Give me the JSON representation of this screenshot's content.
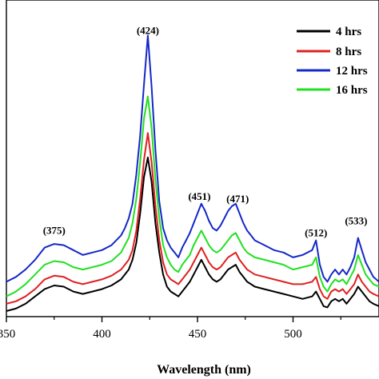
{
  "chart_data": {
    "type": "line",
    "title": "",
    "xlabel": "Wavelength (nm)",
    "ylabel": "",
    "xlim": [
      350,
      545
    ],
    "ylim": [
      0,
      100
    ],
    "x_ticks": [
      350,
      400,
      450,
      500
    ],
    "y_ticks_shown": false,
    "grid": false,
    "legend_position": "top-right",
    "x_tick_labels": [
      "350",
      "400",
      "450",
      "500"
    ],
    "peak_labels": [
      {
        "text": "(375)",
        "x": 375,
        "y": 29
      },
      {
        "text": "(424)",
        "x": 424,
        "y": 111
      },
      {
        "text": "(451)",
        "x": 451,
        "y": 43
      },
      {
        "text": "(471)",
        "x": 471,
        "y": 42
      },
      {
        "text": "(512)",
        "x": 512,
        "y": 28
      },
      {
        "text": "(533)",
        "x": 533,
        "y": 33
      }
    ],
    "x": [
      350,
      355,
      360,
      365,
      370,
      375,
      380,
      385,
      390,
      395,
      400,
      405,
      410,
      412,
      414,
      416,
      418,
      420,
      422,
      424,
      426,
      428,
      430,
      432,
      434,
      436,
      438,
      440,
      442,
      444,
      446,
      448,
      450,
      452,
      454,
      456,
      458,
      460,
      462,
      464,
      466,
      468,
      470,
      472,
      474,
      476,
      478,
      480,
      485,
      490,
      495,
      500,
      505,
      510,
      512,
      514,
      516,
      518,
      520,
      522,
      524,
      526,
      528,
      530,
      532,
      534,
      536,
      538,
      540,
      542,
      545
    ],
    "series": [
      {
        "name": "4 hrs",
        "color": "#000000",
        "values": [
          0,
          1,
          3,
          6,
          9,
          10.5,
          10,
          8,
          7,
          8,
          9,
          10.5,
          13,
          15,
          17,
          21,
          28,
          40,
          55,
          63,
          53,
          36,
          24,
          15,
          10,
          8,
          7,
          6,
          8,
          10,
          12,
          15,
          18,
          21,
          18,
          15,
          13,
          12,
          13,
          15,
          17,
          18,
          19,
          16,
          14,
          12,
          11,
          10,
          9,
          8,
          7,
          6,
          5,
          6,
          8,
          5,
          2,
          1.5,
          4,
          5,
          4,
          5,
          3,
          5,
          7,
          10,
          8,
          6,
          4,
          3,
          2
        ]
      },
      {
        "name": "8 hrs",
        "color": "#e02020",
        "values": [
          3,
          4,
          6,
          9,
          13,
          14.5,
          14,
          12,
          11,
          12,
          13,
          14.5,
          17,
          19,
          21,
          25,
          33,
          46,
          62,
          73,
          61,
          43,
          29,
          20,
          15,
          13,
          12,
          11,
          13,
          15,
          17,
          20,
          23,
          26,
          23,
          20,
          18,
          17,
          18,
          20,
          22,
          23,
          24,
          21,
          19,
          17,
          16,
          15,
          14,
          13,
          12,
          11,
          11,
          12,
          14,
          9,
          6,
          5,
          8,
          9,
          8,
          9,
          7,
          9,
          11,
          15,
          12,
          10,
          8,
          7,
          6
        ]
      },
      {
        "name": "12 hrs",
        "color": "#1528c8",
        "values": [
          12,
          14,
          17,
          21,
          26,
          27.5,
          27,
          25,
          23,
          24,
          25,
          27,
          31,
          34,
          38,
          44,
          56,
          72,
          93,
          113,
          92,
          66,
          45,
          34,
          29,
          26,
          24,
          22,
          26,
          29,
          32,
          36,
          40,
          44,
          41,
          37,
          34,
          33,
          35,
          38,
          41,
          43,
          44,
          40,
          36,
          33,
          31,
          29,
          27,
          25,
          24,
          22,
          23,
          25,
          29,
          19,
          14,
          12,
          15,
          17,
          15,
          17,
          15,
          18,
          22,
          30,
          25,
          20,
          17,
          14,
          12
        ]
      },
      {
        "name": "16 hrs",
        "color": "#22e022",
        "values": [
          6,
          8,
          11,
          15,
          19,
          20.5,
          20,
          18,
          17,
          18,
          19,
          20.5,
          24,
          27,
          30,
          36,
          46,
          61,
          79,
          88,
          75,
          54,
          38,
          27,
          22,
          19,
          17,
          16,
          19,
          21,
          23,
          27,
          30,
          33,
          30,
          27,
          25,
          24,
          25,
          27,
          29,
          31,
          32,
          29,
          26,
          24,
          23,
          22,
          21,
          20,
          19,
          17,
          18,
          19,
          22,
          14,
          10,
          8,
          11,
          13,
          12,
          13,
          11,
          14,
          17,
          23,
          19,
          15,
          13,
          11,
          10
        ]
      }
    ]
  }
}
